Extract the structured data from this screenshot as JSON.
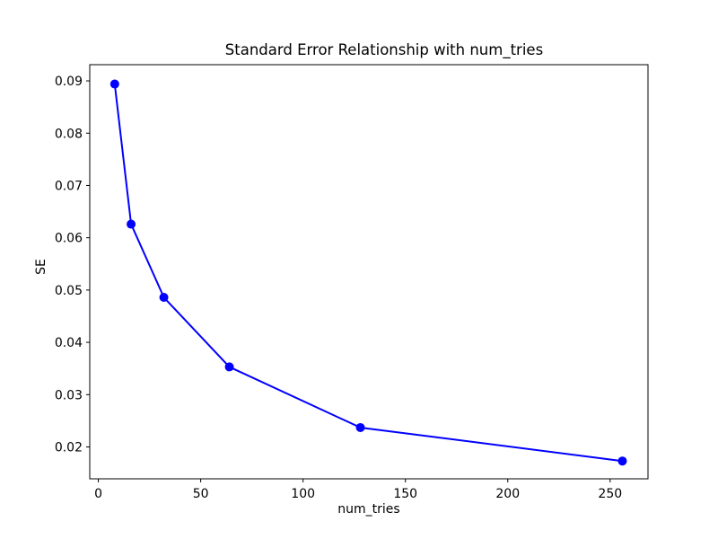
{
  "figure": {
    "background": "#ffffff",
    "text_color": "#000000"
  },
  "chart_data": {
    "type": "line",
    "title": "Standard Error Relationship with num_tries",
    "xlabel": "num_tries",
    "ylabel": "SE",
    "series": [
      {
        "color": "#0000ff",
        "marker": "circle",
        "marker_radius": 5,
        "line_width": 2,
        "x": [
          8,
          16,
          32,
          64,
          128,
          256
        ],
        "y": [
          0.0894,
          0.0626,
          0.0486,
          0.0353,
          0.0237,
          0.0173
        ]
      }
    ],
    "xlim": [
      -4.2,
      268.5
    ],
    "ylim": [
      0.0139,
      0.0931
    ],
    "xticks": [
      0,
      50,
      100,
      150,
      200,
      250
    ],
    "yticks": [
      0.02,
      0.03,
      0.04,
      0.05,
      0.06,
      0.07,
      0.08,
      0.09
    ],
    "grid": false,
    "legend_position": "none"
  }
}
